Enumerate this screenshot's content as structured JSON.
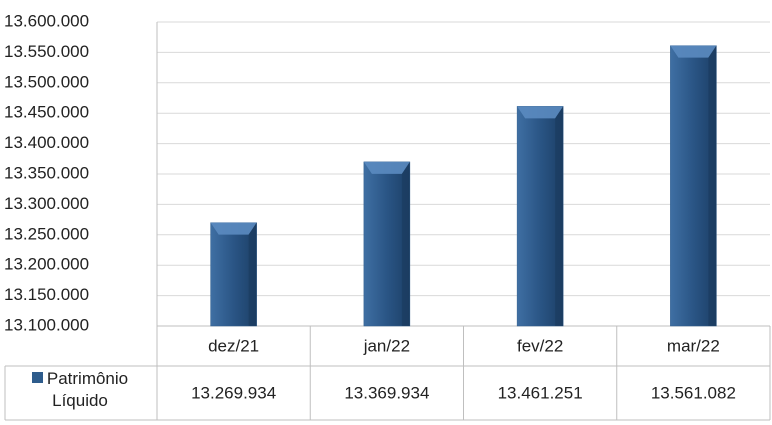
{
  "chart_data": {
    "type": "bar",
    "categories": [
      "dez/21",
      "jan/22",
      "fev/22",
      "mar/22"
    ],
    "series": [
      {
        "name": "Patrimônio Líquido",
        "color": "#2e5c8c",
        "values": [
          13269934,
          13369934,
          13461251,
          13561082
        ],
        "value_labels": [
          "13.269.934",
          "13.369.934",
          "13.461.251",
          "13.561.082"
        ]
      }
    ],
    "ylim": [
      13100000,
      13600000
    ],
    "yticks": [
      {
        "value": 13100000,
        "label": "13.100.000"
      },
      {
        "value": 13150000,
        "label": "13.150.000"
      },
      {
        "value": 13200000,
        "label": "13.200.000"
      },
      {
        "value": 13250000,
        "label": "13.250.000"
      },
      {
        "value": 13300000,
        "label": "13.300.000"
      },
      {
        "value": 13350000,
        "label": "13.350.000"
      },
      {
        "value": 13400000,
        "label": "13.400.000"
      },
      {
        "value": 13450000,
        "label": "13.450.000"
      },
      {
        "value": 13500000,
        "label": "13.500.000"
      },
      {
        "value": 13550000,
        "label": "13.550.000"
      },
      {
        "value": 13600000,
        "label": "13.600.000"
      }
    ],
    "grid": true,
    "data_table": true
  }
}
